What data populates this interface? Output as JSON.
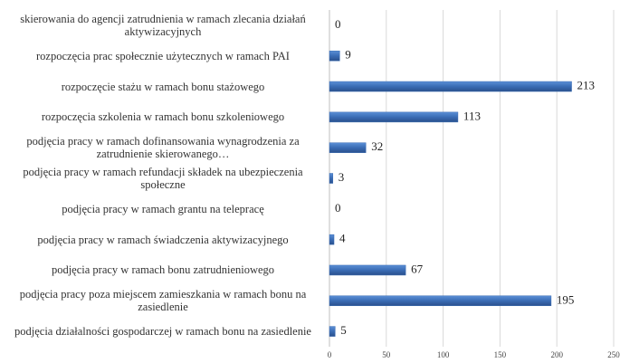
{
  "chart_data": {
    "type": "barh",
    "categories": [
      "skierowania do agencji zatrudnienia w ramach zlecania działań aktywizacyjnych",
      "rozpoczęcia prac społecznie użytecznych w ramach PAI",
      "rozpoczęcie stażu w ramach bonu stażowego",
      "rozpoczęcia szkolenia w ramach bonu szkoleniowego",
      "podjęcia pracy w ramach dofinansowania wynagrodzenia za zatrudnienie skierowanego…",
      "podjęcia pracy w ramach refundacji składek na ubezpieczenia społeczne",
      "podjęcia pracy w ramach grantu na telepracę",
      "podjęcia pracy w ramach świadczenia aktywizacyjnego",
      "podjęcia pracy w ramach bonu zatrudnieniowego",
      "podjęcia pracy poza miejscem zamieszkania w ramach bonu na zasiedlenie",
      "podjęcia działalności gospodarczej w ramach bonu na zasiedlenie"
    ],
    "values": [
      0,
      9,
      213,
      113,
      32,
      3,
      0,
      4,
      67,
      195,
      5
    ],
    "color": "#3a6cb4",
    "xlim": [
      0,
      250
    ],
    "xticks": [
      0,
      50,
      100,
      150,
      200,
      250
    ],
    "grid": true
  }
}
